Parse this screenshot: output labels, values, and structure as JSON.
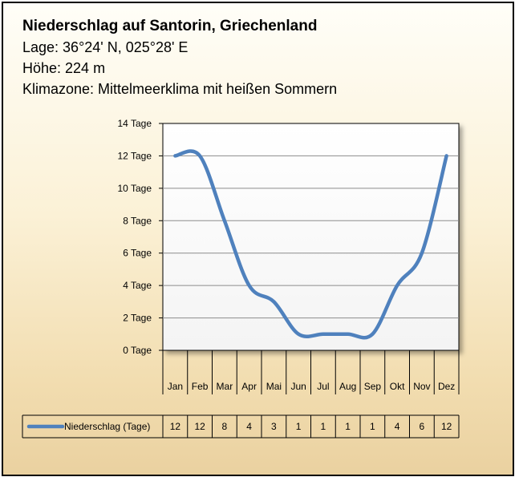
{
  "header": {
    "title": "Niederschlag auf Santorin, Griechenland",
    "location": "Lage: 36°24' N, 025°28' E",
    "altitude": "Höhe: 224 m",
    "climate": "Klimazone: Mittelmeerklima mit heißen Sommern"
  },
  "chart_data": {
    "type": "line",
    "title": "Niederschlag auf Santorin, Griechenland",
    "categories": [
      "Jan",
      "Feb",
      "Mar",
      "Apr",
      "Mai",
      "Jun",
      "Jul",
      "Aug",
      "Sep",
      "Okt",
      "Nov",
      "Dez"
    ],
    "series": [
      {
        "name": "Niederschlag (Tage)",
        "values": [
          12,
          12,
          8,
          4,
          3,
          1,
          1,
          1,
          1,
          4,
          6,
          12
        ],
        "color": "#4f81bd"
      }
    ],
    "y_ticks": [
      "0 Tage",
      "2 Tage",
      "4 Tage",
      "6 Tage",
      "8 Tage",
      "10 Tage",
      "12 Tage",
      "14 Tage"
    ],
    "ylim": [
      0,
      14
    ],
    "grid": true,
    "smooth": true,
    "legend_position": "bottom data table"
  }
}
